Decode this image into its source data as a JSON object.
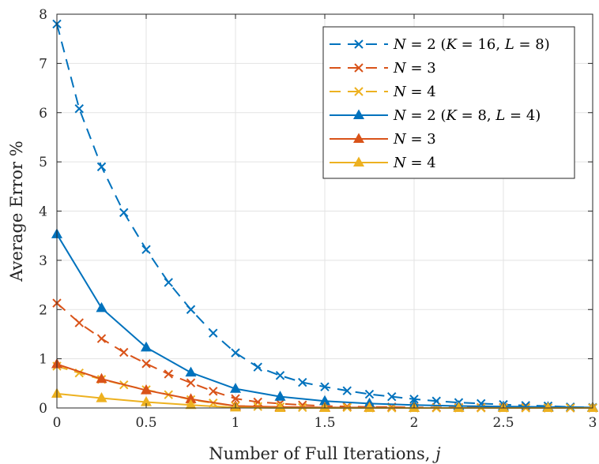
{
  "chart_data": {
    "type": "line",
    "xlabel_prefix": "Number of Full Iterations, ",
    "xlabel_var": "j",
    "ylabel": "Average Error %",
    "xlim": [
      0,
      3
    ],
    "ylim": [
      0,
      8
    ],
    "xticks": [
      0,
      0.5,
      1,
      1.5,
      2,
      2.5,
      3
    ],
    "xtick_labels": [
      "0",
      "0.5",
      "1",
      "1.5",
      "2",
      "2.5",
      "3"
    ],
    "yticks": [
      0,
      1,
      2,
      3,
      4,
      5,
      6,
      7,
      8
    ],
    "ytick_labels": [
      "0",
      "1",
      "2",
      "3",
      "4",
      "5",
      "6",
      "7",
      "8"
    ],
    "grid": true,
    "legend_position": "top-right",
    "series": [
      {
        "legend": [
          [
            "N",
            "it"
          ],
          [
            " = 2 (",
            ""
          ],
          [
            "K",
            "it"
          ],
          [
            " = 16, ",
            ""
          ],
          [
            "L",
            "it"
          ],
          [
            " = 8)",
            ""
          ]
        ],
        "color": "#0072BD",
        "dash": true,
        "marker": "x",
        "x": [
          0,
          0.125,
          0.25,
          0.375,
          0.5,
          0.625,
          0.75,
          0.875,
          1,
          1.125,
          1.25,
          1.375,
          1.5,
          1.625,
          1.75,
          1.875,
          2,
          2.125,
          2.25,
          2.375,
          2.5,
          2.625,
          2.75,
          2.875,
          3
        ],
        "y": [
          7.8,
          6.08,
          4.9,
          3.97,
          3.22,
          2.55,
          2.0,
          1.52,
          1.12,
          0.83,
          0.66,
          0.52,
          0.43,
          0.35,
          0.28,
          0.23,
          0.18,
          0.14,
          0.11,
          0.09,
          0.07,
          0.05,
          0.04,
          0.02,
          0.01
        ]
      },
      {
        "legend": [
          [
            "N",
            "it"
          ],
          [
            " = 3",
            ""
          ]
        ],
        "color": "#D95319",
        "dash": true,
        "marker": "x",
        "x": [
          0,
          0.125,
          0.25,
          0.375,
          0.5,
          0.625,
          0.75,
          0.875,
          1,
          1.125,
          1.25,
          1.375,
          1.5,
          1.625,
          1.75,
          1.875,
          2,
          2.125,
          2.25,
          2.375,
          2.5,
          2.625,
          2.75,
          2.875,
          3
        ],
        "y": [
          2.13,
          1.73,
          1.41,
          1.13,
          0.9,
          0.69,
          0.51,
          0.34,
          0.19,
          0.12,
          0.09,
          0.06,
          0.04,
          0.03,
          0.02,
          0.02,
          0.01,
          0.01,
          0.01,
          0.01,
          0.01,
          0.01,
          0.0,
          0.0,
          0.0
        ]
      },
      {
        "legend": [
          [
            "N",
            "it"
          ],
          [
            " = 4",
            ""
          ]
        ],
        "color": "#EDB120",
        "dash": true,
        "marker": "x",
        "x": [
          0,
          0.125,
          0.25,
          0.375,
          0.5,
          0.625,
          0.75,
          0.875,
          1,
          1.125,
          1.25,
          1.375,
          1.5,
          1.625,
          1.75,
          1.875,
          2,
          2.125,
          2.25,
          2.375,
          2.5,
          2.625,
          2.75,
          2.875,
          3
        ],
        "y": [
          0.85,
          0.71,
          0.58,
          0.47,
          0.37,
          0.27,
          0.17,
          0.1,
          0.04,
          0.03,
          0.02,
          0.01,
          0.01,
          0.01,
          0.0,
          0.0,
          0.0,
          0.0,
          0.0,
          0.0,
          0.0,
          0.0,
          0.0,
          0.0,
          0.0
        ]
      },
      {
        "legend": [
          [
            "N",
            "it"
          ],
          [
            " = 2 (",
            ""
          ],
          [
            "K",
            "it"
          ],
          [
            " = 8, ",
            ""
          ],
          [
            "L",
            "it"
          ],
          [
            " = 4)",
            ""
          ]
        ],
        "color": "#0072BD",
        "dash": false,
        "marker": "triangle",
        "x": [
          0,
          0.25,
          0.5,
          0.75,
          1,
          1.25,
          1.5,
          1.75,
          2,
          2.25,
          2.5,
          2.75,
          3
        ],
        "y": [
          3.53,
          2.03,
          1.23,
          0.72,
          0.39,
          0.23,
          0.14,
          0.09,
          0.06,
          0.04,
          0.03,
          0.02,
          0.01
        ]
      },
      {
        "legend": [
          [
            "N",
            "it"
          ],
          [
            " = 3",
            ""
          ]
        ],
        "color": "#D95319",
        "dash": false,
        "marker": "triangle",
        "x": [
          0,
          0.25,
          0.5,
          0.75,
          1,
          1.25,
          1.5,
          1.75,
          2,
          2.25,
          2.5,
          2.75,
          3
        ],
        "y": [
          0.89,
          0.59,
          0.36,
          0.18,
          0.04,
          0.02,
          0.01,
          0.01,
          0.0,
          0.0,
          0.0,
          0.0,
          0.0
        ]
      },
      {
        "legend": [
          [
            "N",
            "it"
          ],
          [
            " = 4",
            ""
          ]
        ],
        "color": "#EDB120",
        "dash": false,
        "marker": "triangle",
        "x": [
          0,
          0.25,
          0.5,
          0.75,
          1,
          1.25,
          1.5,
          1.75,
          2,
          2.25,
          2.5,
          2.75,
          3
        ],
        "y": [
          0.29,
          0.2,
          0.12,
          0.06,
          0.01,
          0.0,
          0.0,
          0.0,
          0.0,
          0.0,
          0.0,
          0.0,
          0.0
        ]
      }
    ]
  }
}
